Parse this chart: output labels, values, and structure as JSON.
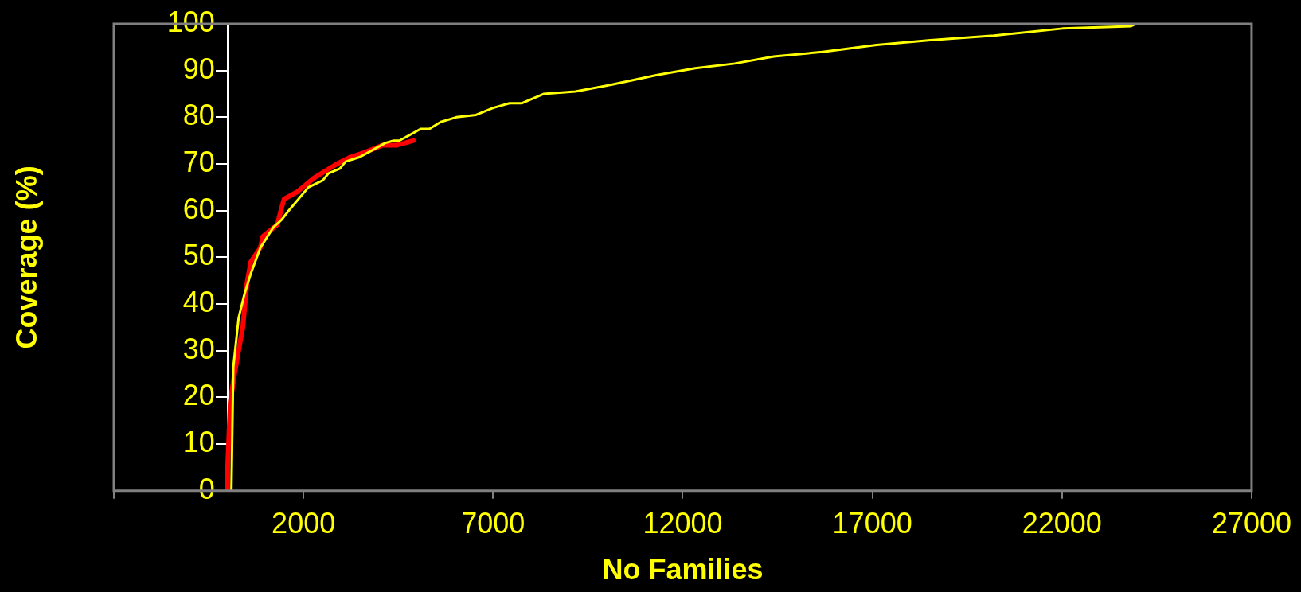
{
  "chart_data": {
    "type": "line",
    "xlabel": "No Families",
    "ylabel": "Coverage (%)",
    "xlim": [
      -3000,
      27000
    ],
    "xticks": [
      {
        "value": -3000,
        "label": null
      },
      2000,
      7000,
      12000,
      17000,
      22000,
      27000
    ],
    "ylim": [
      0,
      100
    ],
    "yticks": [
      0,
      10,
      20,
      30,
      40,
      50,
      60,
      70,
      80,
      90,
      100
    ],
    "grid": false,
    "legend": false,
    "marker": "none",
    "line_style": "solid",
    "series": [
      {
        "color": "#ff0000",
        "x": [
          0,
          0,
          70,
          180,
          290,
          400,
          510,
          610,
          860,
          930,
          1310,
          1420,
          1490,
          1830,
          2280,
          2880,
          3250,
          3630,
          4080,
          4450,
          4900
        ],
        "values": [
          0,
          5,
          19,
          25,
          30,
          35,
          44.5,
          49,
          52,
          54.5,
          57,
          60.5,
          62.5,
          64,
          67,
          70,
          71.5,
          72.5,
          74,
          74,
          75
        ]
      },
      {
        "color": "#ffff00",
        "x": [
          100,
          150,
          290,
          440,
          610,
          860,
          1210,
          1420,
          1610,
          2130,
          2510,
          2660,
          2960,
          3110,
          3490,
          4160,
          4380,
          4530,
          5090,
          5320,
          5620,
          6030,
          6550,
          7000,
          7430,
          7750,
          8330,
          9170,
          10140,
          11300,
          12330,
          13370,
          14400,
          15690,
          17110,
          18530,
          20210,
          22010,
          23820,
          23950
        ],
        "values": [
          0,
          26.5,
          37,
          42,
          46.5,
          52,
          56.5,
          58,
          60,
          65,
          66.5,
          68,
          69,
          70.5,
          71.5,
          74.5,
          75,
          75,
          77.5,
          77.5,
          79,
          80,
          80.5,
          82,
          83,
          83,
          85,
          85.5,
          87,
          89,
          90.5,
          91.5,
          93,
          94,
          95.5,
          96.5,
          97.5,
          99,
          99.5,
          100
        ]
      }
    ]
  }
}
